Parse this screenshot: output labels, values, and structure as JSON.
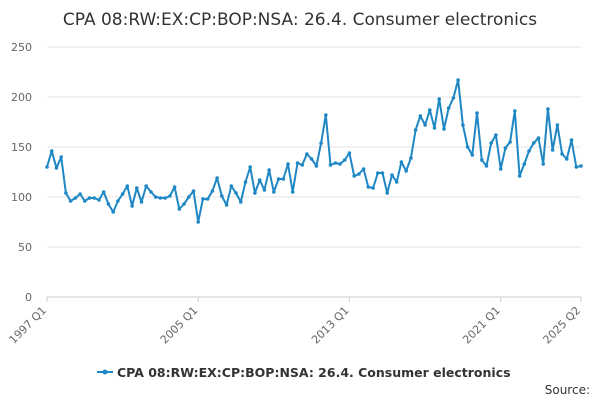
{
  "colors": {
    "series": "#1f87c4",
    "grid": "#e6e6e6",
    "axis": "#cccccc"
  },
  "chart_data": {
    "type": "line",
    "title": "CPA 08:RW:EX:CP:BOP:NSA: 26.4. Consumer electronics",
    "xlabel": "",
    "ylabel": "",
    "ylim": [
      0,
      250
    ],
    "yticks": [
      0,
      50,
      100,
      150,
      200,
      250
    ],
    "xticks": [
      "1997 Q1",
      "2005 Q1",
      "2013 Q1",
      "2021 Q1",
      "2025 Q2"
    ],
    "xrange": [
      "1997 Q1",
      "2025 Q2"
    ],
    "grid": "horizontal",
    "legend": "bottom",
    "source_label": "Source:",
    "series": [
      {
        "name": "CPA 08:RW:EX:CP:BOP:NSA: 26.4. Consumer electronics",
        "x": [
          "1997 Q1",
          "1997 Q2",
          "1997 Q3",
          "1997 Q4",
          "1998 Q1",
          "1998 Q2",
          "1998 Q3",
          "1998 Q4",
          "1999 Q1",
          "1999 Q2",
          "1999 Q3",
          "1999 Q4",
          "2000 Q1",
          "2000 Q2",
          "2000 Q3",
          "2000 Q4",
          "2001 Q1",
          "2001 Q2",
          "2001 Q3",
          "2001 Q4",
          "2002 Q1",
          "2002 Q2",
          "2002 Q3",
          "2002 Q4",
          "2003 Q1",
          "2003 Q2",
          "2003 Q3",
          "2003 Q4",
          "2004 Q1",
          "2004 Q2",
          "2004 Q3",
          "2004 Q4",
          "2005 Q1",
          "2005 Q2",
          "2005 Q3",
          "2005 Q4",
          "2006 Q1",
          "2006 Q2",
          "2006 Q3",
          "2006 Q4",
          "2007 Q1",
          "2007 Q2",
          "2007 Q3",
          "2007 Q4",
          "2008 Q1",
          "2008 Q2",
          "2008 Q3",
          "2008 Q4",
          "2009 Q1",
          "2009 Q2",
          "2009 Q3",
          "2009 Q4",
          "2010 Q1",
          "2010 Q2",
          "2010 Q3",
          "2010 Q4",
          "2011 Q1",
          "2011 Q2",
          "2011 Q3",
          "2011 Q4",
          "2012 Q1",
          "2012 Q2",
          "2012 Q3",
          "2012 Q4",
          "2013 Q1",
          "2013 Q2",
          "2013 Q3",
          "2013 Q4",
          "2014 Q1",
          "2014 Q2",
          "2014 Q3",
          "2014 Q4",
          "2015 Q1",
          "2015 Q2",
          "2015 Q3",
          "2015 Q4",
          "2016 Q1",
          "2016 Q2",
          "2016 Q3",
          "2016 Q4",
          "2017 Q1",
          "2017 Q2",
          "2017 Q3",
          "2017 Q4",
          "2018 Q1",
          "2018 Q2",
          "2018 Q3",
          "2018 Q4",
          "2019 Q1",
          "2019 Q2",
          "2019 Q3",
          "2019 Q4",
          "2020 Q1",
          "2020 Q2",
          "2020 Q3",
          "2020 Q4",
          "2021 Q1",
          "2021 Q2",
          "2021 Q3",
          "2021 Q4",
          "2022 Q1",
          "2022 Q2",
          "2022 Q3",
          "2022 Q4",
          "2023 Q1",
          "2023 Q2",
          "2023 Q3",
          "2023 Q4",
          "2024 Q1",
          "2024 Q2",
          "2024 Q3",
          "2024 Q4",
          "2025 Q1",
          "2025 Q2"
        ],
        "values": [
          130,
          146,
          129,
          140,
          104,
          96,
          99,
          103,
          96,
          99,
          99,
          97,
          105,
          93,
          85,
          96,
          103,
          111,
          91,
          109,
          95,
          111,
          105,
          100,
          99,
          99,
          101,
          110,
          88,
          93,
          100,
          106,
          75,
          98,
          98,
          106,
          119,
          101,
          92,
          111,
          104,
          95,
          115,
          130,
          104,
          117,
          107,
          127,
          105,
          118,
          118,
          133,
          105,
          134,
          132,
          143,
          138,
          131,
          154,
          182,
          132,
          134,
          133,
          137,
          144,
          121,
          123,
          128,
          110,
          109,
          124,
          124,
          104,
          122,
          115,
          135,
          126,
          139,
          167,
          181,
          172,
          187,
          169,
          198,
          168,
          189,
          199,
          217,
          172,
          150,
          142,
          184,
          137,
          131,
          154,
          162,
          128,
          149,
          155,
          186,
          121,
          133,
          146,
          154,
          159,
          133,
          188,
          147,
          172,
          143,
          138,
          157,
          130,
          131
        ]
      }
    ]
  }
}
